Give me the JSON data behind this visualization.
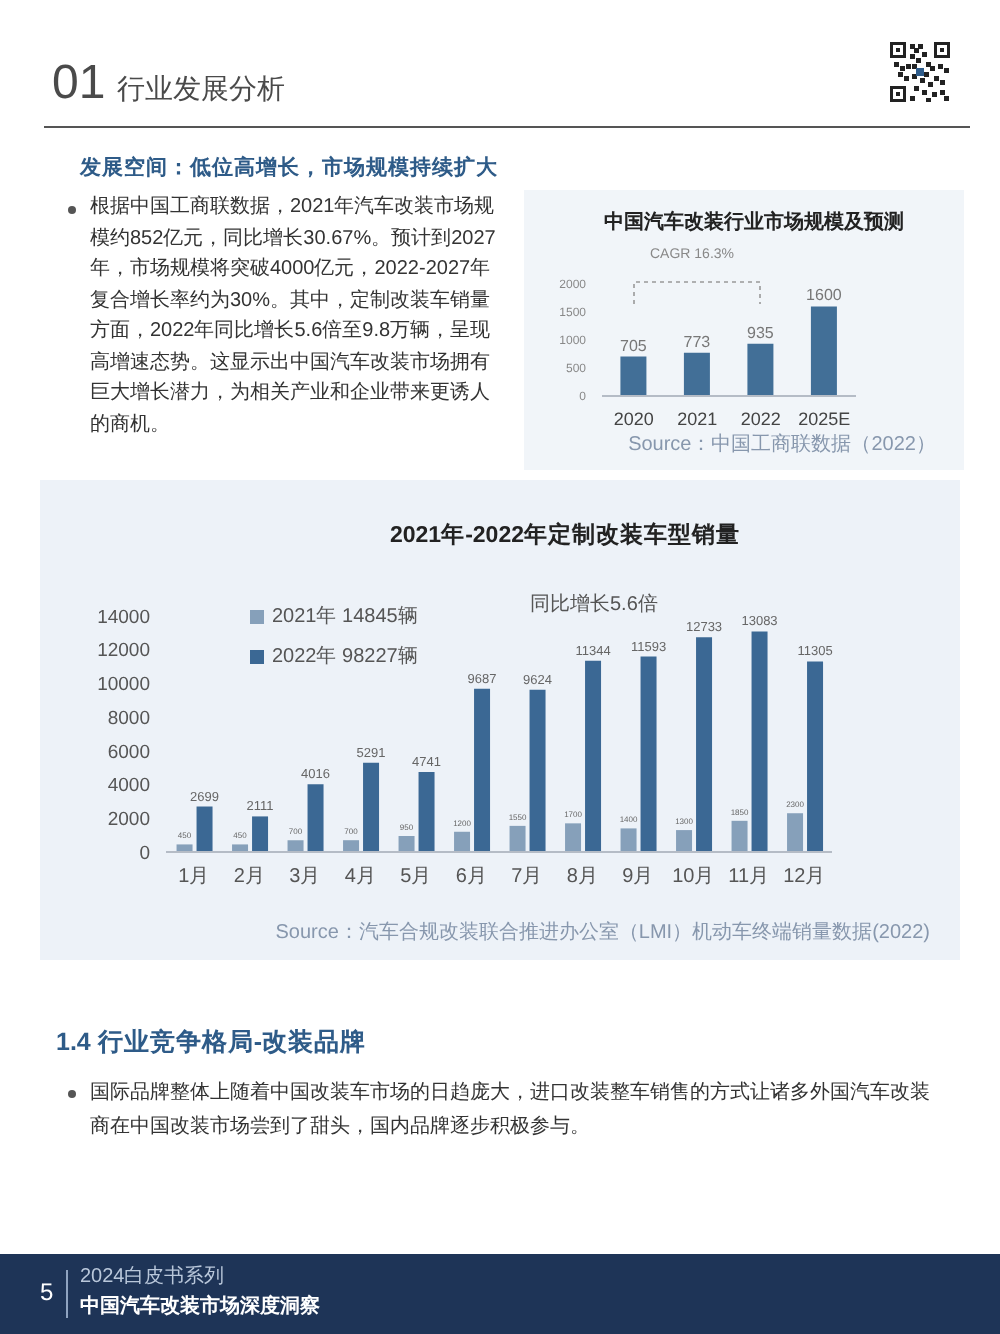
{
  "chart_data": [
    {
      "type": "other",
      "title": "01 行业发展分析",
      "subtitle": "发展空间：低位高增长，市场规模持续扩大",
      "annotations": [
        "根据中国工商联数据，2021年汽车改装市场规模约852亿元，同比增长30.67%。预计到2027年，市场规模将突破4000亿元，2022-2027年复合增长率约为30%。其中，定制改装车销量方面，2022年同比增长5.6倍至9.8万辆，呈现高增速态势。这显示出中国汽车改装市场拥有巨大增长潜力，为相关产业和企业带来更诱人的商机。"
      ]
    },
    {
      "type": "bar",
      "title": "中国汽车改装行业市场规模及预测",
      "categories": [
        "2020",
        "2021",
        "2022",
        "2025E"
      ],
      "values": [
        705,
        773,
        935,
        1600
      ],
      "color": "#426f97",
      "ylim": [
        0,
        2000
      ],
      "yticks": [
        0,
        500,
        1000,
        1500,
        2000
      ],
      "data_labels": true,
      "annotations": [
        "CAGR 16.3%",
        "Source：中国工商联数据（2022）"
      ]
    },
    {
      "type": "bar",
      "title": "2021年-2022年定制改装车型销量",
      "categories": [
        "1月",
        "2月",
        "3月",
        "4月",
        "5月",
        "6月",
        "7月",
        "8月",
        "9月",
        "10月",
        "11月",
        "12月"
      ],
      "series": [
        {
          "name": "2021年 14845辆",
          "color": "#86a0ba",
          "values": [
            450,
            450,
            700,
            700,
            950,
            1200,
            1550,
            1700,
            1400,
            1300,
            1850,
            2300
          ]
        },
        {
          "name": "2022年 98227辆",
          "color": "#3b6894",
          "values": [
            2699,
            2111,
            4016,
            5291,
            4741,
            9687,
            9624,
            11344,
            11593,
            12733,
            13083,
            11305
          ]
        }
      ],
      "ylim": [
        0,
        14000
      ],
      "yticks": [
        0,
        2000,
        4000,
        6000,
        8000,
        10000,
        12000,
        14000
      ],
      "data_labels": true,
      "legend": "top left",
      "annotations": [
        "同比增长5.6倍",
        "Source：汽车合规改装联合推进办公室（LMI）机动车终端销量数据(2022)"
      ]
    },
    {
      "type": "other",
      "title": "1.4 行业竞争格局-改装品牌",
      "annotations": [
        "国际品牌整体上随着中国改装车市场的日趋庞大，进口改装整车销售的方式让诸多外国汽车改装商在中国改装市场尝到了甜头，国内品牌逐步积极参与。",
        "5",
        "2024白皮书系列",
        "中国汽车改装市场深度洞察"
      ]
    }
  ]
}
